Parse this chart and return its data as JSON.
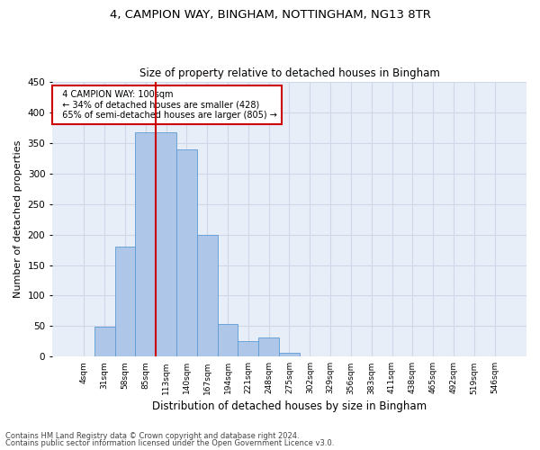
{
  "title_line1": "4, CAMPION WAY, BINGHAM, NOTTINGHAM, NG13 8TR",
  "title_line2": "Size of property relative to detached houses in Bingham",
  "xlabel": "Distribution of detached houses by size in Bingham",
  "ylabel": "Number of detached properties",
  "footnote1": "Contains HM Land Registry data © Crown copyright and database right 2024.",
  "footnote2": "Contains public sector information licensed under the Open Government Licence v3.0.",
  "annotation_line1": "4 CAMPION WAY: 100sqm",
  "annotation_line2": "← 34% of detached houses are smaller (428)",
  "annotation_line3": "65% of semi-detached houses are larger (805) →",
  "bar_color": "#aec6e8",
  "bar_edge_color": "#5b9bd5",
  "vline_color": "#cc0000",
  "annotation_box_color": "#cc0000",
  "grid_color": "#d0d8e8",
  "background_color": "#e8eef8",
  "categories": [
    "4sqm",
    "31sqm",
    "58sqm",
    "85sqm",
    "113sqm",
    "140sqm",
    "167sqm",
    "194sqm",
    "221sqm",
    "248sqm",
    "275sqm",
    "302sqm",
    "329sqm",
    "356sqm",
    "383sqm",
    "411sqm",
    "438sqm",
    "465sqm",
    "492sqm",
    "519sqm",
    "546sqm"
  ],
  "values": [
    1,
    49,
    180,
    367,
    367,
    340,
    200,
    54,
    25,
    31,
    6,
    0,
    0,
    0,
    0,
    0,
    0,
    0,
    0,
    0,
    1
  ],
  "ylim": [
    0,
    450
  ],
  "yticks": [
    0,
    50,
    100,
    150,
    200,
    250,
    300,
    350,
    400,
    450
  ],
  "vline_index": 3.5,
  "figsize": [
    6.0,
    5.0
  ],
  "dpi": 100
}
